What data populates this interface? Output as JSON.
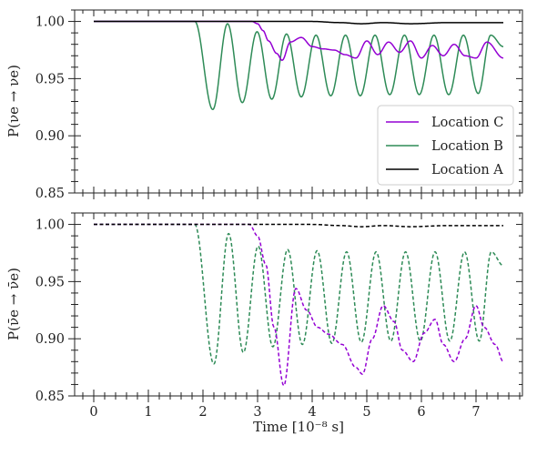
{
  "chart_data": [
    {
      "type": "line",
      "ylabel": "P(νe → νe)",
      "xlabel": "",
      "xlim": [
        -0.35,
        7.85
      ],
      "ylim": [
        0.85,
        1.01
      ],
      "xticks": [
        0,
        1,
        2,
        3,
        4,
        5,
        6,
        7
      ],
      "xtick_labels": [
        "",
        "",
        "",
        "",
        "",
        "",
        "",
        ""
      ],
      "yticks": [
        0.85,
        0.9,
        0.95,
        1.0
      ],
      "ytick_labels": [
        "0.85",
        "0.90",
        "0.95",
        "1.00"
      ],
      "grid": false,
      "legend_position": "right",
      "legend_entries": [
        "Location C",
        "Location B",
        "Location A"
      ],
      "series": [
        {
          "name": "Location C",
          "color": "#9400d3",
          "dash": "solid",
          "x": [
            0,
            2.9,
            3.0,
            3.1,
            3.2,
            3.35,
            3.45,
            3.6,
            3.8,
            4.0,
            4.2,
            4.4,
            4.6,
            4.8,
            5.0,
            5.2,
            5.4,
            5.6,
            5.8,
            6.0,
            6.2,
            6.4,
            6.6,
            6.8,
            7.0,
            7.2,
            7.5
          ],
          "values": [
            1.0,
            1.0,
            0.998,
            0.992,
            0.983,
            0.972,
            0.966,
            0.982,
            0.986,
            0.978,
            0.976,
            0.975,
            0.971,
            0.968,
            0.983,
            0.971,
            0.982,
            0.973,
            0.983,
            0.968,
            0.979,
            0.97,
            0.98,
            0.97,
            0.968,
            0.982,
            0.968
          ]
        },
        {
          "name": "Location B",
          "color": "#2e8b57",
          "dash": "solid",
          "period": 0.5375,
          "x": [
            0,
            1.85,
            2.18,
            2.72,
            3.26,
            3.8,
            4.34,
            4.88,
            5.42,
            5.96,
            6.5,
            7.04,
            7.5
          ],
          "values": [
            1.0,
            1.0,
            0.923,
            0.929,
            0.932,
            0.934,
            0.935,
            0.935,
            0.936,
            0.936,
            0.936,
            0.937,
            0.978
          ],
          "peak_values": [
            1.0,
            1.0,
            0.998,
            0.991,
            0.989,
            0.988,
            0.988,
            0.988,
            0.988,
            0.988,
            0.988,
            0.988
          ]
        },
        {
          "name": "Location A",
          "color": "#000000",
          "dash": "solid",
          "x": [
            0,
            4.0,
            4.5,
            4.9,
            5.3,
            5.8,
            6.5,
            7.0,
            7.5
          ],
          "values": [
            1.0,
            1.0,
            0.999,
            0.998,
            0.999,
            0.998,
            0.999,
            0.999,
            0.999
          ]
        }
      ]
    },
    {
      "type": "line",
      "ylabel": "P(ν̄e → ν̄e)",
      "xlabel": "Time [10⁻⁸ s]",
      "xlim": [
        -0.35,
        7.85
      ],
      "ylim": [
        0.85,
        1.01
      ],
      "xticks": [
        0,
        1,
        2,
        3,
        4,
        5,
        6,
        7
      ],
      "xtick_labels": [
        "0",
        "1",
        "2",
        "3",
        "4",
        "5",
        "6",
        "7"
      ],
      "yticks": [
        0.85,
        0.9,
        0.95,
        1.0
      ],
      "ytick_labels": [
        "0.85",
        "0.90",
        "0.95",
        "1.00"
      ],
      "grid": false,
      "series": [
        {
          "name": "Location C",
          "color": "#9400d3",
          "dash": "dashed",
          "x": [
            0,
            2.85,
            3.0,
            3.15,
            3.3,
            3.48,
            3.7,
            3.9,
            4.1,
            4.3,
            4.55,
            4.8,
            4.92,
            5.1,
            5.3,
            5.5,
            5.65,
            5.85,
            6.05,
            6.25,
            6.4,
            6.6,
            6.8,
            7.0,
            7.15,
            7.35,
            7.5
          ],
          "values": [
            1.0,
            1.0,
            0.99,
            0.965,
            0.91,
            0.859,
            0.944,
            0.925,
            0.91,
            0.904,
            0.895,
            0.875,
            0.869,
            0.9,
            0.929,
            0.915,
            0.89,
            0.88,
            0.905,
            0.917,
            0.895,
            0.88,
            0.9,
            0.929,
            0.91,
            0.895,
            0.88
          ]
        },
        {
          "name": "Location B",
          "color": "#2e8b57",
          "dash": "dashed",
          "period": 0.5375,
          "x": [
            0,
            1.85,
            2.2,
            2.74,
            3.28,
            3.82,
            4.36,
            4.9,
            5.44,
            5.98,
            6.52,
            7.06,
            7.5
          ],
          "values": [
            1.0,
            1.0,
            0.878,
            0.888,
            0.893,
            0.895,
            0.896,
            0.897,
            0.898,
            0.898,
            0.898,
            0.898,
            0.964
          ],
          "peak_values": [
            1.0,
            1.0,
            0.992,
            0.981,
            0.978,
            0.977,
            0.976,
            0.976,
            0.976,
            0.976,
            0.976,
            0.976
          ]
        },
        {
          "name": "Location A",
          "color": "#000000",
          "dash": "dashed",
          "x": [
            0,
            4.0,
            4.5,
            4.9,
            5.3,
            5.8,
            6.5,
            7.0,
            7.5
          ],
          "values": [
            1.0,
            1.0,
            0.999,
            0.998,
            0.999,
            0.998,
            0.999,
            0.999,
            0.999
          ]
        }
      ]
    }
  ]
}
